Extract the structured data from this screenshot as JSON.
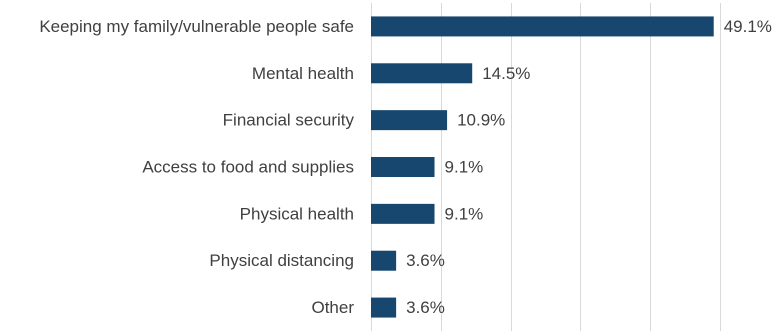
{
  "chart_data": {
    "type": "bar",
    "orientation": "horizontal",
    "categories": [
      "Keeping my family/vulnerable people safe",
      "Mental health",
      "Financial security",
      "Access to food and supplies",
      "Physical health",
      "Physical distancing",
      "Other"
    ],
    "values": [
      49.1,
      14.5,
      10.9,
      9.1,
      9.1,
      3.6,
      3.6
    ],
    "value_labels": [
      "49.1%",
      "14.5%",
      "10.9%",
      "9.1%",
      "9.1%",
      "3.6%",
      "3.6%"
    ],
    "xlim": [
      0,
      50
    ],
    "grid": true,
    "bar_color": "#17476e",
    "gridline_color": "#d9d9d9",
    "text_color": "#404040"
  }
}
